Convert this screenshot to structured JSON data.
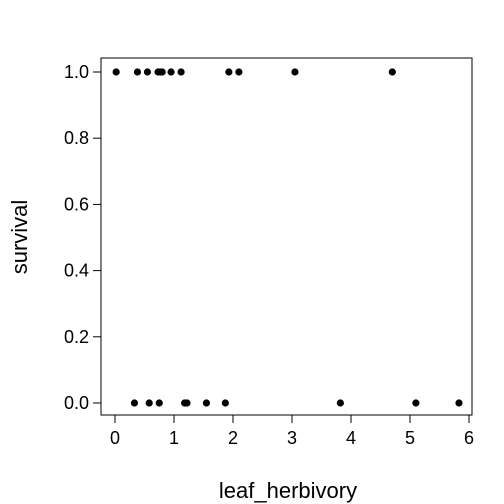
{
  "chart_data": {
    "type": "scatter",
    "xlabel": "leaf_herbivory",
    "ylabel": "survival",
    "xlim": [
      0,
      6
    ],
    "ylim": [
      0,
      1
    ],
    "x_ticks": [
      "0",
      "1",
      "2",
      "3",
      "4",
      "5",
      "6"
    ],
    "y_ticks": [
      "0.0",
      "0.2",
      "0.4",
      "0.6",
      "0.8",
      "1.0"
    ],
    "grid": false,
    "series": [
      {
        "points": [
          {
            "x": 0.02,
            "y": 1.0
          },
          {
            "x": 0.38,
            "y": 1.0
          },
          {
            "x": 0.55,
            "y": 1.0
          },
          {
            "x": 0.73,
            "y": 1.0
          },
          {
            "x": 0.77,
            "y": 1.0
          },
          {
            "x": 0.8,
            "y": 1.0
          },
          {
            "x": 0.95,
            "y": 1.0
          },
          {
            "x": 1.12,
            "y": 1.0
          },
          {
            "x": 1.93,
            "y": 1.0
          },
          {
            "x": 2.1,
            "y": 1.0
          },
          {
            "x": 3.05,
            "y": 1.0
          },
          {
            "x": 4.7,
            "y": 1.0
          },
          {
            "x": 0.33,
            "y": 0.0
          },
          {
            "x": 0.58,
            "y": 0.0
          },
          {
            "x": 0.75,
            "y": 0.0
          },
          {
            "x": 1.18,
            "y": 0.0
          },
          {
            "x": 1.22,
            "y": 0.0
          },
          {
            "x": 1.55,
            "y": 0.0
          },
          {
            "x": 1.87,
            "y": 0.0
          },
          {
            "x": 3.82,
            "y": 0.0
          },
          {
            "x": 5.1,
            "y": 0.0
          },
          {
            "x": 5.83,
            "y": 0.0
          }
        ]
      }
    ]
  }
}
